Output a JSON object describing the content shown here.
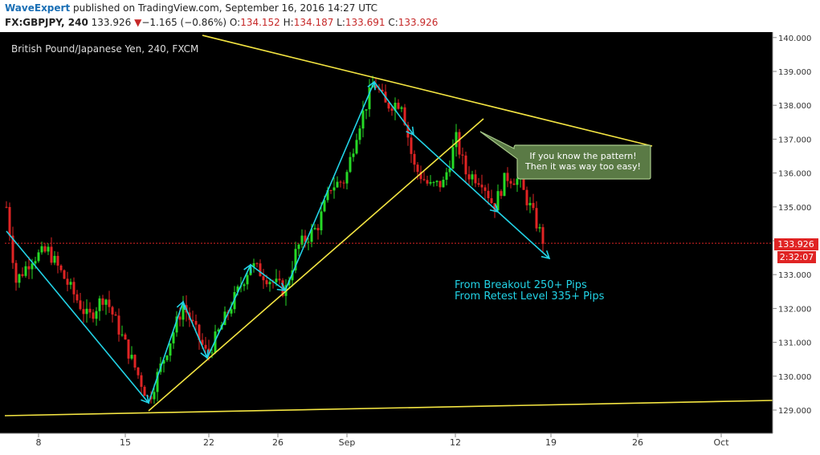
{
  "header": {
    "author": "WaveExpert",
    "published": " published on TradingView.com, September 16, 2016 14:27 UTC",
    "symbol": "FX:GBPJPY, 240",
    "last": "133.926",
    "arrow": "▼",
    "change": "−1.165 (−0.86%)",
    "o_label": "O:",
    "o_value": "134.152",
    "h_label": "H:",
    "h_value": "134.187",
    "l_label": "L:",
    "l_value": "133.691",
    "c_label": "C:",
    "c_value": "133.926"
  },
  "chart_data": {
    "type": "candlestick",
    "title": "British Pound/Japanese Yen, 240, FXCM",
    "ylim": [
      128.6,
      140.1
    ],
    "y_ticks": [
      "129.000",
      "130.000",
      "131.000",
      "132.000",
      "133.000",
      "134.000",
      "135.000",
      "136.000",
      "137.000",
      "138.000",
      "139.000",
      "140.000"
    ],
    "x_ticks": [
      "8",
      "15",
      "22",
      "26",
      "Sep",
      "12",
      "19",
      "26",
      "Oct"
    ],
    "last_price": "133.926",
    "countdown": "2:32:07",
    "series_summary": [
      {
        "date": "Aug 3",
        "close": 135.0
      },
      {
        "date": "Aug 5",
        "close": 132.8
      },
      {
        "date": "Aug 16",
        "close": 129.3
      },
      {
        "date": "Aug 19",
        "close": 132.1
      },
      {
        "date": "Aug 22",
        "close": 130.6
      },
      {
        "date": "Aug 25",
        "close": 133.3
      },
      {
        "date": "Aug 26",
        "close": 132.5
      },
      {
        "date": "Sep 2",
        "close": 138.7
      },
      {
        "date": "Sep 8",
        "close": 135.6
      },
      {
        "date": "Sep 12",
        "close": 137.0
      },
      {
        "date": "Sep 16",
        "close": 133.9
      }
    ],
    "annotations": {
      "callout": [
        "If you know the pattern!",
        "Then it was way too easy!"
      ],
      "note": [
        "From Breakout 250+ Pips",
        "From Retest Level 335+ Pips"
      ]
    },
    "colors": {
      "background": "#000000",
      "up": "#26d926",
      "down": "#e02424",
      "trendline": "#f4e542",
      "wave": "#22d3e6",
      "price_line": "#e02424",
      "callout_fill": "#5a7a45"
    }
  }
}
